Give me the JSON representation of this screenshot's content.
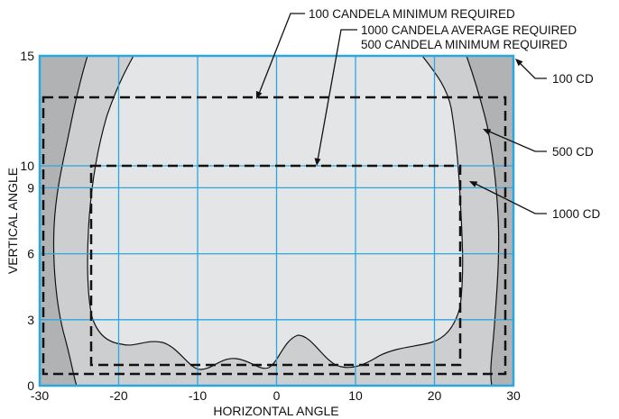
{
  "diagram": {
    "xlabel": "HORIZONTAL ANGLE",
    "ylabel": "VERTICAL ANGLE",
    "x_ticks": [
      -30,
      -20,
      -10,
      0,
      10,
      20,
      30
    ],
    "y_ticks": [
      0,
      3,
      6,
      9,
      10,
      15
    ],
    "x_range": [
      -30,
      30
    ],
    "y_range": [
      0,
      15
    ],
    "grid": true,
    "colors": {
      "grid": "#2aa7e0",
      "zone_100cd": "#b1b2b4",
      "zone_500cd": "#cdcecf",
      "zone_1000cd": "#e4e5e6",
      "outline": "#111111"
    },
    "zones": [
      {
        "name": "100 CD"
      },
      {
        "name": "500 CD"
      },
      {
        "name": "1000 CD"
      }
    ],
    "requirement_boxes": [
      {
        "label": "100 CANDELA MINIMUM REQUIRED"
      },
      {
        "label_line1": "1000 CANDELA AVERAGE REQUIRED",
        "label_line2": "500 CANDELA MINIMUM REQUIRED"
      }
    ]
  }
}
